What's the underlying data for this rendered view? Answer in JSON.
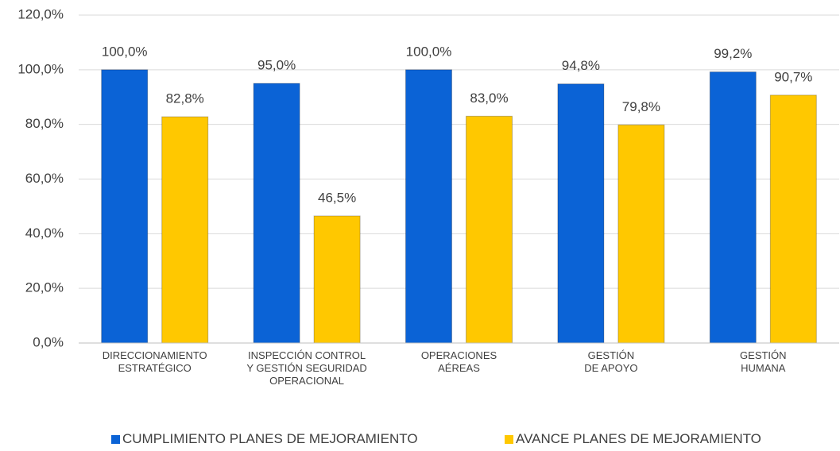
{
  "chart_data": {
    "type": "bar",
    "categories": [
      "DIRECCIONAMIENTO\nESTRATÉGICO",
      "INSPECCIÓN CONTROL\nY GESTIÓN  SEGURIDAD\nOPERACIONAL",
      "OPERACIONES\nAÉREAS",
      "GESTIÓN\nDE APOYO",
      "GESTIÓN\nHUMANA"
    ],
    "series": [
      {
        "name": "CUMPLIMIENTO PLANES DE MEJORAMIENTO",
        "color": "#0b63d6",
        "values": [
          100.0,
          95.0,
          100.0,
          94.8,
          99.2
        ],
        "value_labels": [
          "100,0%",
          "95,0%",
          "100,0%",
          "94,8%",
          "99,2%"
        ]
      },
      {
        "name": "AVANCE PLANES DE MEJORAMIENTO",
        "color": "#ffc800",
        "values": [
          82.8,
          46.5,
          83.0,
          79.8,
          90.7
        ],
        "value_labels": [
          "82,8%",
          "46,5%",
          "83,0%",
          "79,8%",
          "90,7%"
        ]
      }
    ],
    "ylim": [
      0,
      120
    ],
    "yticks": [
      {
        "value": 0,
        "label": "0,0%"
      },
      {
        "value": 20,
        "label": "20,0%"
      },
      {
        "value": 40,
        "label": "40,0%"
      },
      {
        "value": 60,
        "label": "60,0%"
      },
      {
        "value": 80,
        "label": "80,0%"
      },
      {
        "value": 100,
        "label": "100,0%"
      },
      {
        "value": 120,
        "label": "120,0%"
      }
    ],
    "grid": true,
    "legend": "bottom"
  }
}
